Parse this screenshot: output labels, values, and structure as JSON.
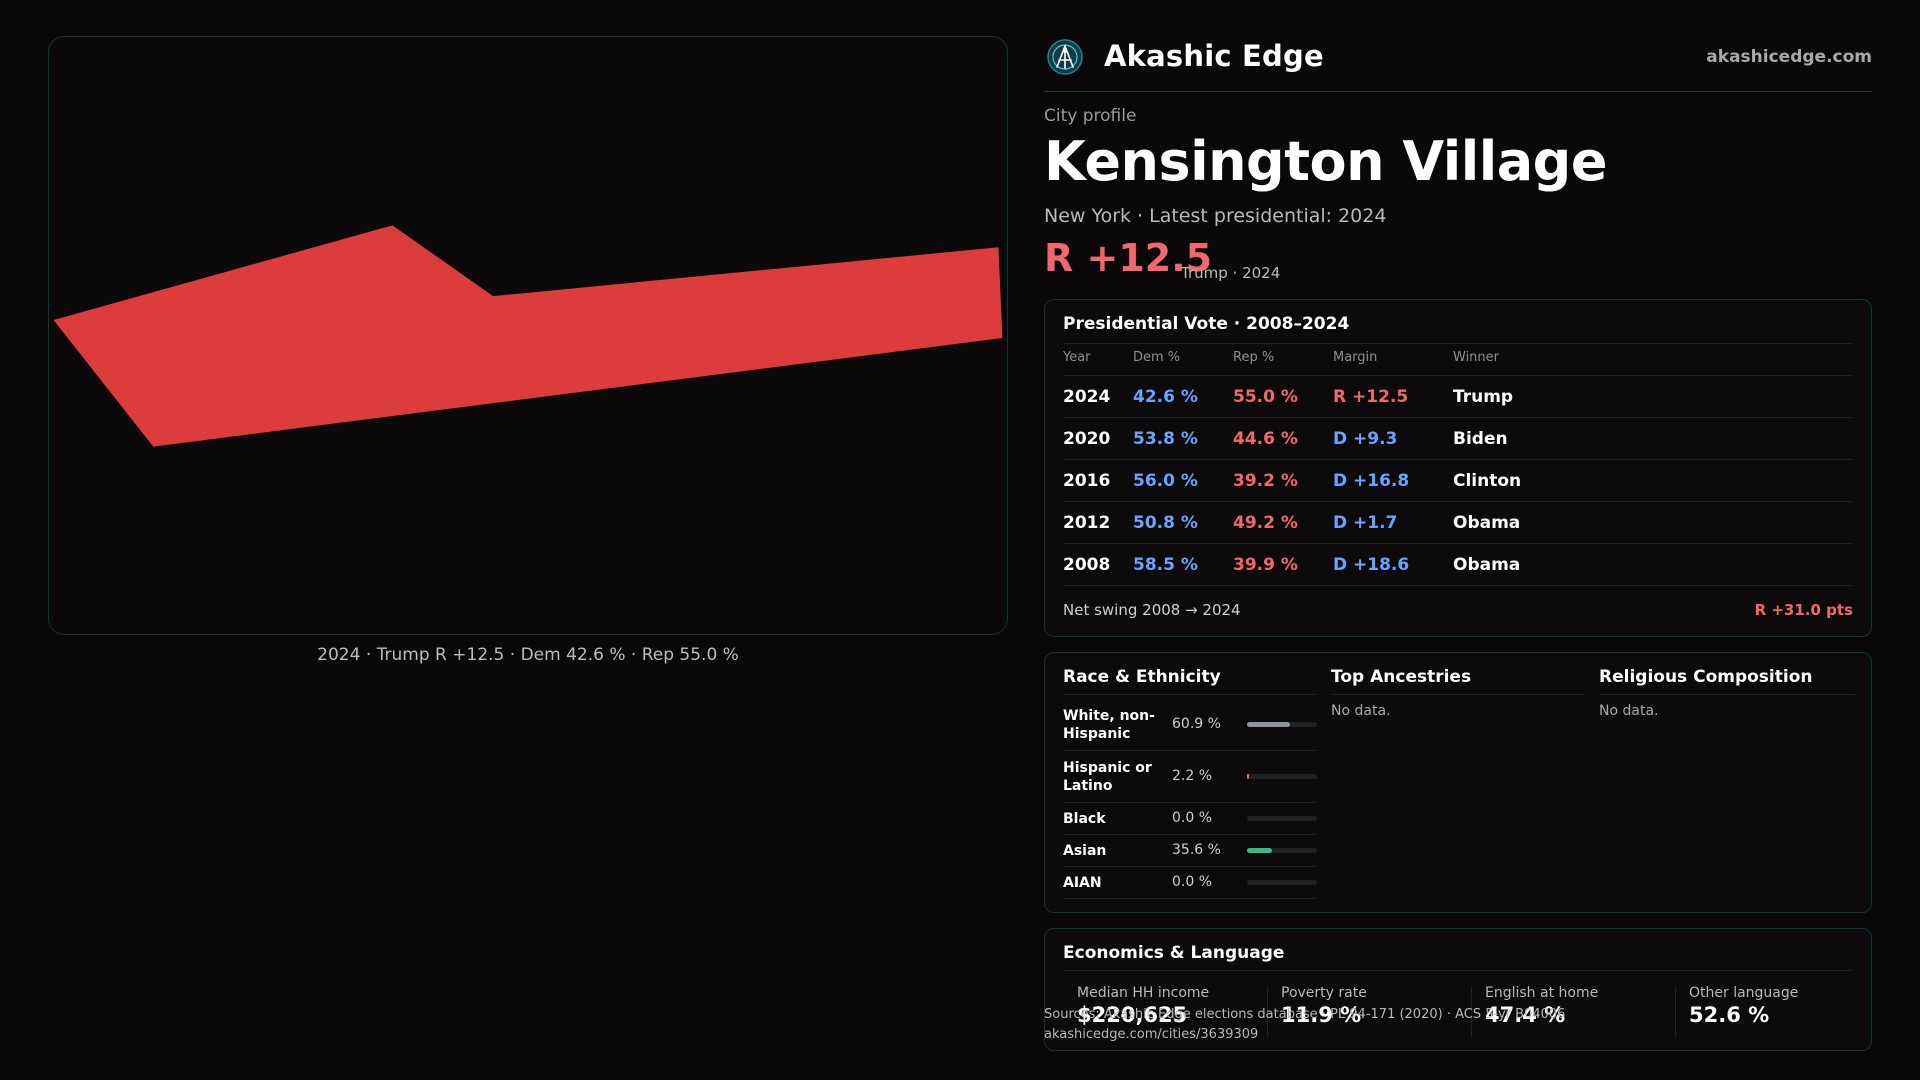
{
  "map": {
    "caption": "2024 · Trump R +12.5 · Dem 42.6 % · Rep 55.0 %",
    "fill_color": "#dc3c3c"
  },
  "header": {
    "logo_icon": "akashic-edge-logo-icon",
    "brand": "Akashic Edge",
    "site": "akashicedge.com"
  },
  "profile": {
    "kicker": "City profile",
    "name": "Kensington Village",
    "subline": "New York  · Latest presidential: 2024",
    "margin": "R +12.5",
    "margin_sub": "Trump · 2024"
  },
  "vote": {
    "title": "Presidential Vote · 2008–2024",
    "headers": {
      "year": "Year",
      "dem": "Dem %",
      "rep": "Rep %",
      "margin": "Margin",
      "winner": "Winner"
    },
    "rows": [
      {
        "year": "2024",
        "dem": "42.6 %",
        "rep": "55.0 %",
        "margin": "R +12.5",
        "winner": "Trump"
      },
      {
        "year": "2020",
        "dem": "53.8 %",
        "rep": "44.6 %",
        "margin": "D +9.3",
        "winner": "Biden"
      },
      {
        "year": "2016",
        "dem": "56.0 %",
        "rep": "39.2 %",
        "margin": "D +16.8",
        "winner": "Clinton"
      },
      {
        "year": "2012",
        "dem": "50.8 %",
        "rep": "49.2 %",
        "margin": "D +1.7",
        "winner": "Obama"
      },
      {
        "year": "2008",
        "dem": "58.5 %",
        "rep": "39.9 %",
        "margin": "D +18.6",
        "winner": "Obama"
      }
    ],
    "swing_label": "Net swing 2008 → 2024",
    "swing_value": "R +31.0 pts"
  },
  "demographics": {
    "race_title": "Race & Ethnicity",
    "race": [
      {
        "label": "White, non-Hispanic",
        "pct": "60.9 %",
        "share": 0.609,
        "color": "#8d96a6"
      },
      {
        "label": "Hispanic or Latino",
        "pct": "2.2 %",
        "share": 0.022,
        "color": "#d8783a"
      },
      {
        "label": "Black",
        "pct": "0.0 %",
        "share": 0.0,
        "color": "#8d96a6"
      },
      {
        "label": "Asian",
        "pct": "35.6 %",
        "share": 0.356,
        "color": "#2fbf86"
      },
      {
        "label": "AIAN",
        "pct": "0.0 %",
        "share": 0.0,
        "color": "#8d96a6"
      }
    ],
    "ancestry_title": "Top Ancestries",
    "ancestry_empty": "No data.",
    "religion_title": "Religious Composition",
    "religion_empty": "No data."
  },
  "economics": {
    "title": "Economics & Language",
    "stats": [
      {
        "label": "Median HH income",
        "value": "$220,625"
      },
      {
        "label": "Poverty rate",
        "value": "11.9 %"
      },
      {
        "label": "English at home",
        "value": "47.4 %"
      },
      {
        "label": "Other language",
        "value": "52.6 %"
      }
    ]
  },
  "source": {
    "line1": "Sources: Akashic Edge elections database · PL 94-171 (2020) · ACS 5-yr B04006",
    "line2": "akashicedge.com/cities/3639309"
  }
}
